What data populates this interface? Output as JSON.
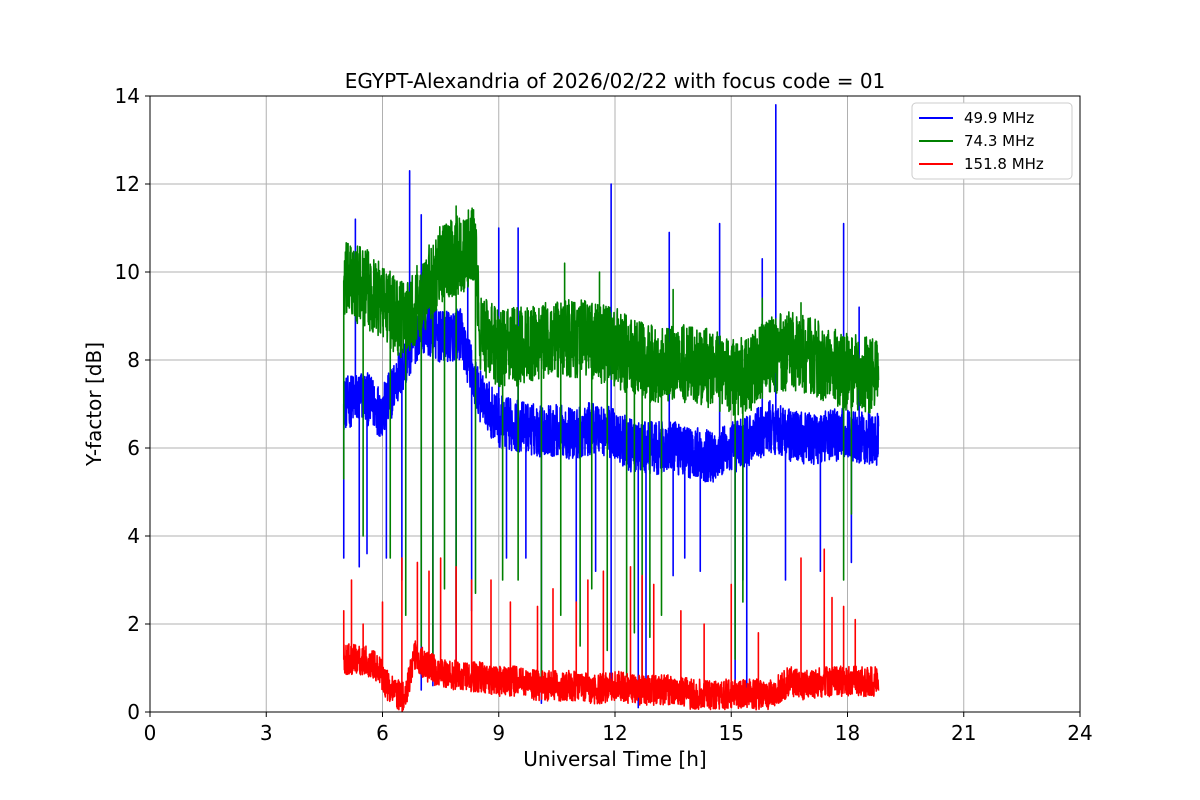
{
  "chart_data": {
    "type": "line",
    "title": "EGYPT-Alexandria of 2026/02/22 with focus code = 01",
    "xlabel": "Universal Time [h]",
    "ylabel": "Y-factor [dB]",
    "xlim": [
      0,
      24
    ],
    "ylim": [
      0,
      14
    ],
    "xticks": [
      "0",
      "3",
      "6",
      "9",
      "12",
      "15",
      "18",
      "21",
      "24"
    ],
    "yticks": [
      "0",
      "2",
      "4",
      "6",
      "8",
      "10",
      "12",
      "14"
    ],
    "grid": true,
    "legend_position": "top-right",
    "data_range_x": [
      5.0,
      18.8
    ],
    "series": [
      {
        "name": "  49.9 MHz",
        "color": "#0000ff",
        "baseline": [
          [
            5.0,
            7.0
          ],
          [
            5.5,
            7.2
          ],
          [
            6.0,
            6.8
          ],
          [
            6.5,
            7.8
          ],
          [
            7.0,
            8.8
          ],
          [
            7.5,
            8.5
          ],
          [
            8.0,
            8.6
          ],
          [
            8.5,
            7.2
          ],
          [
            9.0,
            6.6
          ],
          [
            9.5,
            6.5
          ],
          [
            10.0,
            6.4
          ],
          [
            10.5,
            6.4
          ],
          [
            11.0,
            6.3
          ],
          [
            11.5,
            6.5
          ],
          [
            12.0,
            6.3
          ],
          [
            12.5,
            6.0
          ],
          [
            13.0,
            6.0
          ],
          [
            13.5,
            6.0
          ],
          [
            14.0,
            5.9
          ],
          [
            14.5,
            5.8
          ],
          [
            15.0,
            6.0
          ],
          [
            15.5,
            6.2
          ],
          [
            16.0,
            6.5
          ],
          [
            16.5,
            6.3
          ],
          [
            17.0,
            6.2
          ],
          [
            17.5,
            6.3
          ],
          [
            18.0,
            6.3
          ],
          [
            18.8,
            6.2
          ]
        ],
        "noise": 0.6,
        "spikes": [
          [
            5.3,
            11.2
          ],
          [
            6.7,
            12.3
          ],
          [
            7.0,
            11.3
          ],
          [
            8.2,
            10.1
          ],
          [
            9.0,
            11.0
          ],
          [
            9.5,
            11.0
          ],
          [
            11.9,
            12.0
          ],
          [
            13.4,
            10.9
          ],
          [
            14.7,
            11.1
          ],
          [
            15.8,
            10.3
          ],
          [
            16.15,
            13.8
          ],
          [
            17.9,
            11.1
          ],
          [
            18.3,
            9.2
          ]
        ],
        "dips": [
          [
            5.0,
            3.5
          ],
          [
            5.4,
            3.3
          ],
          [
            5.6,
            3.6
          ],
          [
            6.1,
            3.5
          ],
          [
            6.5,
            3.0
          ],
          [
            7.0,
            0.5
          ],
          [
            7.3,
            0.6
          ],
          [
            7.9,
            0.6
          ],
          [
            8.3,
            2.3
          ],
          [
            9.2,
            3.5
          ],
          [
            9.7,
            3.5
          ],
          [
            10.1,
            0.2
          ],
          [
            11.0,
            2.0
          ],
          [
            11.5,
            3.2
          ],
          [
            11.9,
            0.5
          ],
          [
            12.6,
            0.1
          ],
          [
            12.8,
            0.2
          ],
          [
            13.5,
            3.1
          ],
          [
            13.8,
            3.5
          ],
          [
            14.2,
            3.2
          ],
          [
            15.1,
            0.5
          ],
          [
            15.4,
            0.4
          ],
          [
            15.3,
            3.0
          ],
          [
            16.4,
            3.0
          ],
          [
            17.3,
            3.2
          ],
          [
            18.1,
            3.4
          ]
        ]
      },
      {
        "name": "  74.3 MHz",
        "color": "#008000",
        "baseline": [
          [
            5.0,
            9.8
          ],
          [
            5.5,
            9.7
          ],
          [
            6.0,
            9.3
          ],
          [
            6.5,
            8.9
          ],
          [
            7.0,
            9.4
          ],
          [
            7.5,
            10.2
          ],
          [
            8.0,
            10.4
          ],
          [
            8.4,
            10.6
          ],
          [
            8.5,
            8.6
          ],
          [
            9.0,
            8.3
          ],
          [
            9.5,
            8.3
          ],
          [
            10.0,
            8.4
          ],
          [
            10.5,
            8.5
          ],
          [
            11.0,
            8.5
          ],
          [
            11.5,
            8.4
          ],
          [
            12.0,
            8.3
          ],
          [
            12.5,
            8.0
          ],
          [
            13.0,
            7.9
          ],
          [
            13.5,
            7.9
          ],
          [
            14.0,
            7.9
          ],
          [
            14.5,
            7.8
          ],
          [
            15.0,
            7.6
          ],
          [
            15.5,
            7.7
          ],
          [
            16.0,
            8.1
          ],
          [
            16.5,
            8.2
          ],
          [
            17.0,
            8.1
          ],
          [
            17.5,
            7.9
          ],
          [
            18.0,
            7.7
          ],
          [
            18.8,
            7.6
          ]
        ],
        "noise": 0.9,
        "spikes": [
          [
            7.9,
            11.5
          ],
          [
            8.3,
            11.3
          ],
          [
            10.7,
            10.2
          ],
          [
            11.6,
            10.0
          ],
          [
            13.5,
            9.6
          ],
          [
            15.8,
            9.4
          ],
          [
            16.8,
            9.3
          ]
        ],
        "dips": [
          [
            5.0,
            5.3
          ],
          [
            5.5,
            4.0
          ],
          [
            6.2,
            3.5
          ],
          [
            6.6,
            2.2
          ],
          [
            7.0,
            1.5
          ],
          [
            7.3,
            1.2
          ],
          [
            7.6,
            2.8
          ],
          [
            7.9,
            2.0
          ],
          [
            8.4,
            2.7
          ],
          [
            9.1,
            3.0
          ],
          [
            9.5,
            3.0
          ],
          [
            10.1,
            0.8
          ],
          [
            10.6,
            2.2
          ],
          [
            11.1,
            1.5
          ],
          [
            11.4,
            2.8
          ],
          [
            11.8,
            1.4
          ],
          [
            12.3,
            0.8
          ],
          [
            12.5,
            1.8
          ],
          [
            12.7,
            0.6
          ],
          [
            12.9,
            1.7
          ],
          [
            13.2,
            2.2
          ],
          [
            15.1,
            1.2
          ],
          [
            15.3,
            2.5
          ],
          [
            17.9,
            3.0
          ],
          [
            18.1,
            4.5
          ]
        ]
      },
      {
        "name": " 151.8 MHz",
        "color": "#ff0000",
        "baseline": [
          [
            5.0,
            1.2
          ],
          [
            5.3,
            1.2
          ],
          [
            5.8,
            1.1
          ],
          [
            6.2,
            0.5
          ],
          [
            6.6,
            0.3
          ],
          [
            6.8,
            1.3
          ],
          [
            7.2,
            1.0
          ],
          [
            7.5,
            0.9
          ],
          [
            8.0,
            0.8
          ],
          [
            8.5,
            0.8
          ],
          [
            9.0,
            0.7
          ],
          [
            9.5,
            0.7
          ],
          [
            10.0,
            0.6
          ],
          [
            10.5,
            0.6
          ],
          [
            11.0,
            0.6
          ],
          [
            11.5,
            0.5
          ],
          [
            12.0,
            0.6
          ],
          [
            12.5,
            0.5
          ],
          [
            13.0,
            0.5
          ],
          [
            13.5,
            0.5
          ],
          [
            14.0,
            0.4
          ],
          [
            14.5,
            0.4
          ],
          [
            15.0,
            0.4
          ],
          [
            15.5,
            0.4
          ],
          [
            16.0,
            0.4
          ],
          [
            16.5,
            0.7
          ],
          [
            17.0,
            0.6
          ],
          [
            17.5,
            0.7
          ],
          [
            18.0,
            0.7
          ],
          [
            18.8,
            0.7
          ]
        ],
        "noise": 0.35,
        "spikes": [
          [
            5.0,
            2.3
          ],
          [
            5.2,
            3.0
          ],
          [
            5.5,
            2.0
          ],
          [
            6.0,
            2.5
          ],
          [
            6.5,
            3.5
          ],
          [
            6.9,
            3.4
          ],
          [
            7.2,
            3.2
          ],
          [
            7.5,
            3.5
          ],
          [
            7.9,
            3.3
          ],
          [
            8.3,
            3.0
          ],
          [
            8.8,
            3.0
          ],
          [
            9.3,
            2.5
          ],
          [
            10.0,
            2.4
          ],
          [
            10.4,
            2.8
          ],
          [
            11.0,
            2.5
          ],
          [
            11.3,
            3.0
          ],
          [
            11.7,
            3.2
          ],
          [
            12.4,
            3.3
          ],
          [
            12.7,
            3.1
          ],
          [
            13.0,
            2.9
          ],
          [
            13.7,
            2.3
          ],
          [
            14.3,
            2.0
          ],
          [
            15.0,
            2.9
          ],
          [
            15.7,
            1.8
          ],
          [
            16.8,
            3.5
          ],
          [
            17.4,
            3.7
          ],
          [
            17.6,
            2.6
          ],
          [
            17.9,
            2.4
          ],
          [
            18.2,
            2.1
          ]
        ],
        "dips": []
      }
    ]
  }
}
